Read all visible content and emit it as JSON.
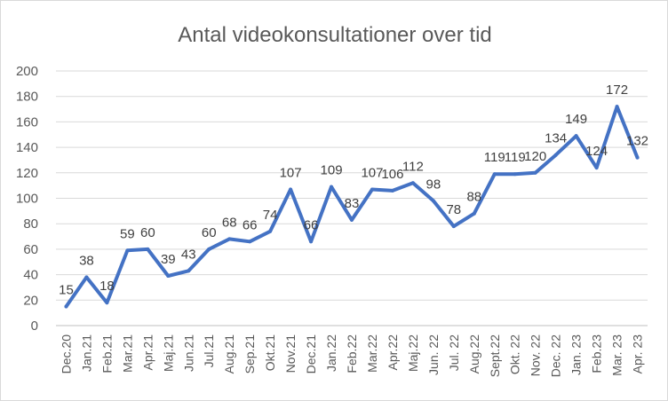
{
  "chart_data": {
    "type": "line",
    "title": "Antal videokonsultationer over tid",
    "xlabel": "",
    "ylabel": "",
    "ylim": [
      0,
      200
    ],
    "yticks": [
      "0",
      "20",
      "40",
      "60",
      "80",
      "100",
      "120",
      "140",
      "160",
      "180",
      "200"
    ],
    "grid": true,
    "legend": "none",
    "line_color": "#4472c4",
    "categories": [
      "Dec.20",
      "Jan.21",
      "Feb.21",
      "Mar.21",
      "Apr.21",
      "Maj.21",
      "Jun.21",
      "Jul.21",
      "Aug.21",
      "Sep.21",
      "Okt.21",
      "Nov.21",
      "Dec.21",
      "Jan.22",
      "Feb.22",
      "Mar.22",
      "Apr.22",
      "Maj.22",
      "Jun. 22",
      "Jul. 22",
      "Aug.22",
      "Sept.22",
      "Okt. 22",
      "Nov. 22",
      "Dec. 22",
      "Jan. 23",
      "Feb.23",
      "Mar. 23",
      "Apr. 23"
    ],
    "series": [
      {
        "values": [
          15,
          38,
          18,
          59,
          60,
          39,
          43,
          60,
          68,
          66,
          74,
          107,
          66,
          109,
          83,
          107,
          106,
          112,
          98,
          78,
          88,
          119,
          119,
          120,
          134,
          149,
          124,
          172,
          132
        ]
      }
    ]
  }
}
